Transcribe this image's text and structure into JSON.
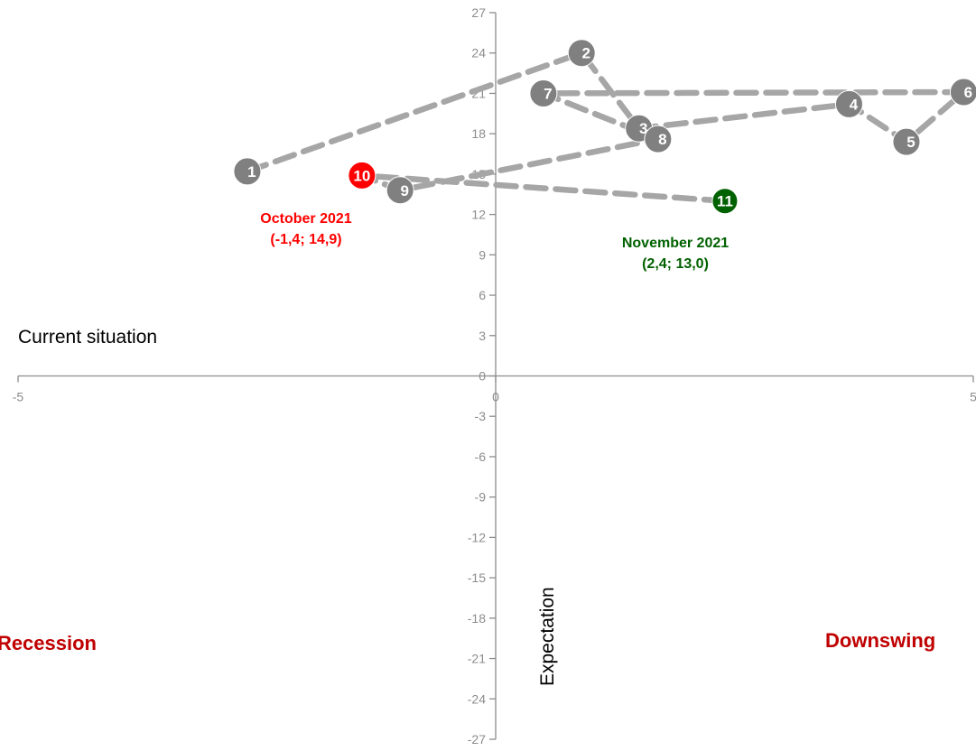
{
  "chart_data": {
    "type": "scatter",
    "xlim": [
      -5,
      5
    ],
    "ylim": [
      -27,
      27
    ],
    "x_ticks": [
      -5,
      0,
      5
    ],
    "y_ticks": [
      27,
      24,
      21,
      18,
      15,
      12,
      9,
      6,
      3,
      0,
      -3,
      -6,
      -9,
      -12,
      -15,
      -18,
      -21,
      -24,
      -27
    ],
    "grid": false,
    "xlabel": "Current situation",
    "ylabel": "Expectation",
    "quadrant_labels": {
      "bottom_left": "Recession",
      "bottom_right": "Downswing"
    },
    "colors": {
      "point": "#808080",
      "line": "#a6a6a6",
      "highlight_current": "#ff0000",
      "highlight_latest": "#006100",
      "quadrant_text": "#c00000",
      "axis": "#8c8c8c"
    },
    "points": [
      {
        "label": "1",
        "x": -2.6,
        "y": 15.2
      },
      {
        "label": "2",
        "x": 0.9,
        "y": 24.0
      },
      {
        "label": "3",
        "x": 1.5,
        "y": 18.4
      },
      {
        "label": "4",
        "x": 3.7,
        "y": 20.2
      },
      {
        "label": "5",
        "x": 4.3,
        "y": 17.4
      },
      {
        "label": "6",
        "x": 4.9,
        "y": 21.1
      },
      {
        "label": "7",
        "x": 0.5,
        "y": 21.0
      },
      {
        "label": "8",
        "x": 1.7,
        "y": 17.6
      },
      {
        "label": "9",
        "x": -1.0,
        "y": 13.8
      },
      {
        "label": "10",
        "x": -1.4,
        "y": 14.9
      },
      {
        "label": "11",
        "x": 2.4,
        "y": 13.0
      }
    ],
    "annotations": [
      {
        "point": "10",
        "line1": "October 2021",
        "line2": "(-1,4; 14,9)"
      },
      {
        "point": "11",
        "line1": "November 2021",
        "line2": "(2,4; 13,0)"
      }
    ]
  }
}
